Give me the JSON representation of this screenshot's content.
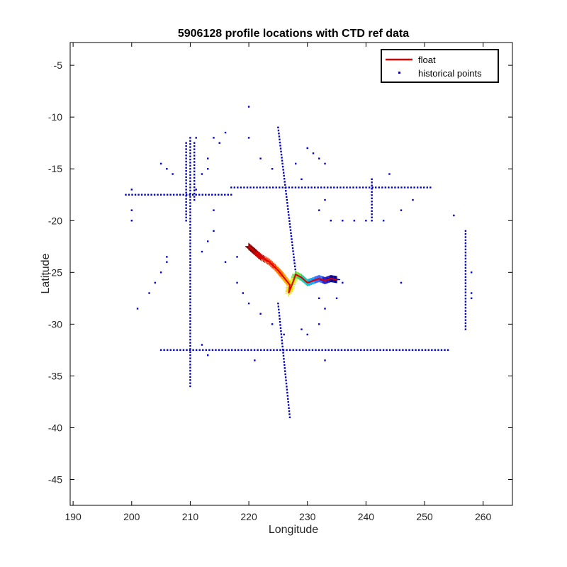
{
  "chart_data": {
    "type": "scatter",
    "title": "5906128 profile locations with CTD ref data",
    "xlabel": "Longitude",
    "ylabel": "Latitude",
    "xlim": [
      189.5,
      265
    ],
    "ylim": [
      -47.5,
      -2.8
    ],
    "xticks": [
      190,
      200,
      210,
      220,
      230,
      240,
      250,
      260
    ],
    "yticks": [
      -5,
      -10,
      -15,
      -20,
      -25,
      -30,
      -35,
      -40,
      -45
    ],
    "grid": false,
    "legend_position": "top-right",
    "legend": [
      {
        "label": "float",
        "color": "#dd0000",
        "marker": "line"
      },
      {
        "label": "historical points",
        "color": "#0000cc",
        "marker": "dot"
      }
    ],
    "series": [
      {
        "name": "historical points",
        "color": "#0000cc",
        "lines": [
          {
            "from": [
              199,
              -17.5
            ],
            "to": [
              217,
              -17.5
            ],
            "step": 0.55
          },
          {
            "from": [
              217,
              -16.8
            ],
            "to": [
              251,
              -16.8
            ],
            "step": 0.55
          },
          {
            "from": [
              205,
              -32.5
            ],
            "to": [
              254,
              -32.5
            ],
            "step": 0.55
          },
          {
            "from": [
              210,
              -12
            ],
            "to": [
              210,
              -36
            ],
            "step": 0.3
          },
          {
            "from": [
              209.3,
              -12.5
            ],
            "to": [
              209.3,
              -20
            ],
            "step": 0.3
          },
          {
            "from": [
              210.7,
              -12.5
            ],
            "to": [
              210.7,
              -18
            ],
            "step": 0.3
          },
          {
            "from": [
              225,
              -11
            ],
            "to": [
              228,
              -25
            ],
            "step": 0.3
          },
          {
            "from": [
              225,
              -28
            ],
            "to": [
              227,
              -39
            ],
            "step": 0.3
          },
          {
            "from": [
              257,
              -21
            ],
            "to": [
              257,
              -30.5
            ],
            "step": 0.3
          },
          {
            "from": [
              241,
              -16
            ],
            "to": [
              241,
              -20
            ],
            "step": 0.3
          }
        ],
        "points": [
          [
            200,
            -17
          ],
          [
            200,
            -19
          ],
          [
            200,
            -20
          ],
          [
            201,
            -28.5
          ],
          [
            203,
            -27
          ],
          [
            204,
            -26
          ],
          [
            205,
            -25
          ],
          [
            206,
            -24
          ],
          [
            206,
            -23.5
          ],
          [
            205,
            -14.5
          ],
          [
            206,
            -15
          ],
          [
            207,
            -15.5
          ],
          [
            211,
            -12
          ],
          [
            213,
            -14
          ],
          [
            214,
            -12
          ],
          [
            215,
            -12.5
          ],
          [
            216,
            -11.5
          ],
          [
            220,
            -12
          ],
          [
            212,
            -15.5
          ],
          [
            213,
            -15
          ],
          [
            211,
            -17
          ],
          [
            212,
            -23
          ],
          [
            213,
            -22
          ],
          [
            214,
            -19
          ],
          [
            214,
            -21
          ],
          [
            216,
            -24
          ],
          [
            218,
            -23.5
          ],
          [
            218,
            -26
          ],
          [
            219,
            -27
          ],
          [
            220,
            -28
          ],
          [
            222,
            -29
          ],
          [
            224,
            -30
          ],
          [
            226,
            -31
          ],
          [
            222,
            -14
          ],
          [
            224,
            -15
          ],
          [
            228,
            -14.5
          ],
          [
            230,
            -13
          ],
          [
            231,
            -13.5
          ],
          [
            232,
            -14
          ],
          [
            233,
            -14.5
          ],
          [
            229,
            -16
          ],
          [
            232,
            -19
          ],
          [
            233,
            -18
          ],
          [
            234,
            -20
          ],
          [
            236,
            -20
          ],
          [
            238,
            -20
          ],
          [
            240,
            -20
          ],
          [
            243,
            -20
          ],
          [
            246,
            -19
          ],
          [
            244,
            -15.5
          ],
          [
            248,
            -18
          ],
          [
            255,
            -19.5
          ],
          [
            246,
            -26
          ],
          [
            236,
            -26
          ],
          [
            235,
            -27.5
          ],
          [
            232,
            -27.5
          ],
          [
            233,
            -28.5
          ],
          [
            232,
            -30
          ],
          [
            230,
            -31
          ],
          [
            229,
            -30.5
          ],
          [
            233,
            -33.5
          ],
          [
            221,
            -33.5
          ],
          [
            212,
            -32
          ],
          [
            213,
            -33
          ],
          [
            258,
            -25
          ],
          [
            258,
            -27
          ],
          [
            258,
            -27.5
          ],
          [
            220,
            -9
          ]
        ]
      },
      {
        "name": "float",
        "color": "#dd0000",
        "track": [
          [
            220,
            -22.5
          ],
          [
            221,
            -23
          ],
          [
            222,
            -23.5
          ],
          [
            223.5,
            -24
          ],
          [
            225,
            -24.8
          ],
          [
            226,
            -25.5
          ],
          [
            227,
            -26.2
          ],
          [
            226.8,
            -27
          ],
          [
            227.5,
            -26
          ],
          [
            228,
            -25.2
          ],
          [
            229,
            -25.5
          ],
          [
            230,
            -26
          ],
          [
            231,
            -25.8
          ],
          [
            232,
            -25.6
          ],
          [
            233,
            -25.8
          ],
          [
            234,
            -25.6
          ],
          [
            235,
            -25.7
          ]
        ],
        "profile_colors": [
          "#8b0000",
          "#cc0000",
          "#ff3300",
          "#ff7700",
          "#ffaa00",
          "#ffe000",
          "#ccee00",
          "#66dd44",
          "#22ccaa",
          "#11aaee",
          "#3366ff",
          "#1a1acc",
          "#000099"
        ]
      }
    ]
  }
}
